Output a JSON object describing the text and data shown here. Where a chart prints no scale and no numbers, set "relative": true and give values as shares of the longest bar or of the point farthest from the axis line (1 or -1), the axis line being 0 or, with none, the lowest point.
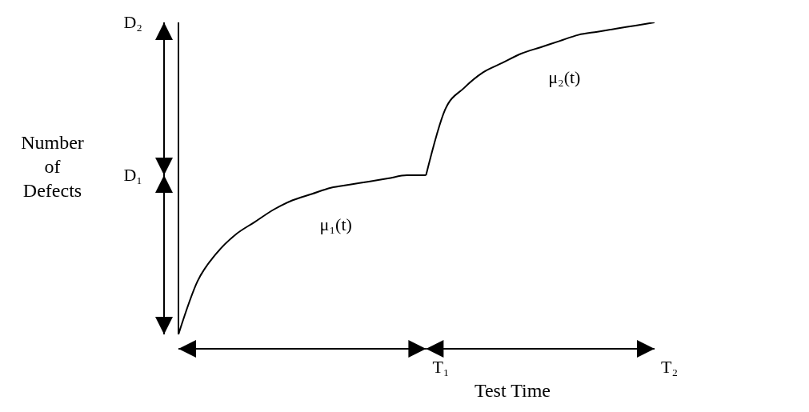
{
  "chart_data": {
    "type": "line",
    "relative": true,
    "xlabel": "Test Time",
    "ylabel": "Number of Defects",
    "categories": [
      null,
      null,
      null,
      null,
      null,
      null,
      null,
      null,
      null,
      null,
      null,
      null,
      null,
      null,
      null,
      null,
      null,
      null,
      null,
      null,
      null,
      null,
      null,
      null,
      null,
      null
    ],
    "series": [
      {
        "name": "μ₁(t)",
        "color": "#000000",
        "values": [
          0,
          0.17,
          0.26,
          0.32,
          0.36,
          0.4,
          0.43,
          0.45,
          0.47,
          0.48,
          0.49,
          0.5,
          0.51,
          0.51,
          null,
          null,
          null,
          null,
          null,
          null,
          null,
          null,
          null,
          null,
          null,
          null
        ]
      },
      {
        "name": "μ₂(t)",
        "color": "#000000",
        "values": [
          null,
          null,
          null,
          null,
          null,
          null,
          null,
          null,
          null,
          null,
          null,
          null,
          null,
          0.51,
          0.72,
          0.79,
          0.84,
          0.87,
          0.9,
          0.92,
          0.94,
          0.96,
          0.97,
          0.98,
          0.99,
          1
        ]
      }
    ],
    "annotations": [
      "D₁",
      "D₂",
      "T₁",
      "T₂"
    ],
    "marker": "none",
    "line_style": "solid"
  }
}
